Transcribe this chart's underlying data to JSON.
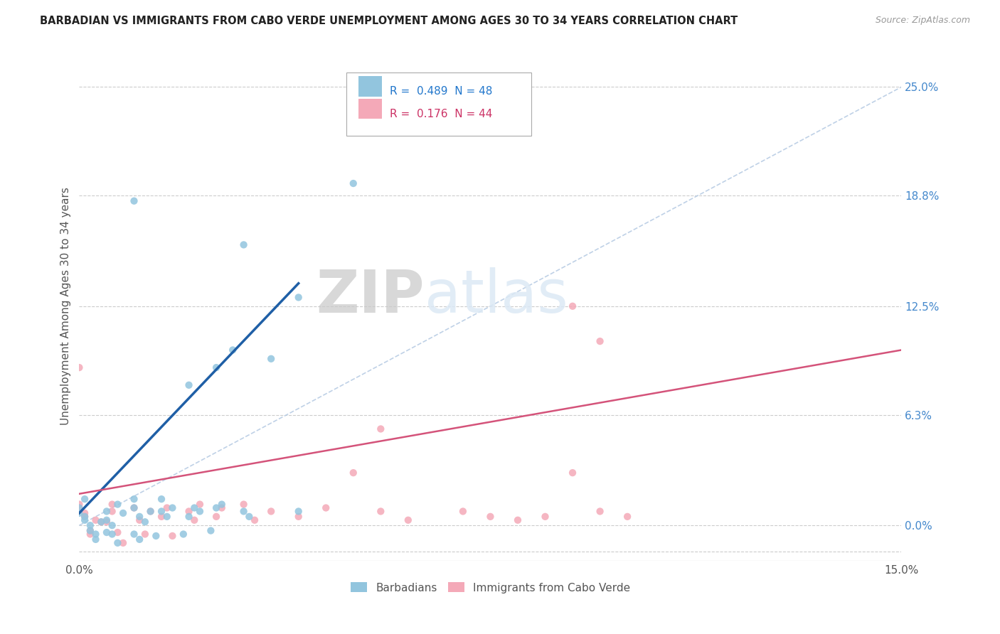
{
  "title": "BARBADIAN VS IMMIGRANTS FROM CABO VERDE UNEMPLOYMENT AMONG AGES 30 TO 34 YEARS CORRELATION CHART",
  "source": "Source: ZipAtlas.com",
  "ylabel": "Unemployment Among Ages 30 to 34 years",
  "xlim": [
    0,
    0.15
  ],
  "ylim": [
    -0.02,
    0.27
  ],
  "ytick_labels_right": [
    "25.0%",
    "18.8%",
    "12.5%",
    "6.3%",
    "0.0%"
  ],
  "yticks_right": [
    0.25,
    0.188,
    0.125,
    0.063,
    0.0
  ],
  "legend_r1_text": "R =  0.489  N = 48",
  "legend_r2_text": "R =  0.176  N = 44",
  "barbadian_color": "#92c5de",
  "cabo_verde_color": "#f4a9b8",
  "blue_line_color": "#1f5fa6",
  "pink_line_color": "#d4537a",
  "ref_line_color": "#b8cce4",
  "background_color": "#ffffff",
  "grid_color": "#cccccc",
  "watermark_color": "#dce9f5",
  "barbadian_x": [
    0.001,
    0.002,
    0.0,
    0.003,
    0.001,
    0.0,
    0.002,
    0.004,
    0.001,
    0.003,
    0.005,
    0.006,
    0.005,
    0.007,
    0.006,
    0.005,
    0.008,
    0.007,
    0.01,
    0.011,
    0.01,
    0.012,
    0.013,
    0.011,
    0.01,
    0.015,
    0.016,
    0.014,
    0.017,
    0.015,
    0.02,
    0.021,
    0.019,
    0.022,
    0.025,
    0.026,
    0.024,
    0.03,
    0.031,
    0.04,
    0.03,
    0.035,
    0.04,
    0.02,
    0.025,
    0.028,
    0.05,
    0.01
  ],
  "barbadian_y": [
    0.005,
    0.0,
    0.01,
    -0.005,
    0.003,
    0.007,
    -0.003,
    0.002,
    0.015,
    -0.008,
    0.008,
    -0.005,
    0.003,
    0.012,
    0.0,
    -0.004,
    0.007,
    -0.01,
    0.01,
    0.005,
    -0.005,
    0.002,
    0.008,
    -0.008,
    0.015,
    0.008,
    0.005,
    -0.006,
    0.01,
    0.015,
    0.005,
    0.01,
    -0.005,
    0.008,
    0.01,
    0.012,
    -0.003,
    0.008,
    0.005,
    0.008,
    0.16,
    0.095,
    0.13,
    0.08,
    0.09,
    0.1,
    0.195,
    0.185
  ],
  "cabo_verde_x": [
    0.001,
    0.0,
    0.002,
    0.003,
    0.001,
    0.0,
    0.002,
    0.004,
    0.006,
    0.005,
    0.007,
    0.006,
    0.008,
    0.01,
    0.011,
    0.012,
    0.013,
    0.015,
    0.016,
    0.017,
    0.02,
    0.021,
    0.022,
    0.025,
    0.026,
    0.03,
    0.032,
    0.035,
    0.04,
    0.045,
    0.05,
    0.055,
    0.06,
    0.07,
    0.075,
    0.08,
    0.085,
    0.09,
    0.095,
    0.1,
    0.055,
    0.09,
    0.095,
    0.0
  ],
  "cabo_verde_y": [
    0.005,
    0.01,
    -0.005,
    0.003,
    0.007,
    0.012,
    -0.003,
    0.002,
    0.008,
    0.002,
    -0.004,
    0.012,
    -0.01,
    0.01,
    0.003,
    -0.005,
    0.008,
    0.005,
    0.01,
    -0.006,
    0.008,
    0.003,
    0.012,
    0.005,
    0.01,
    0.012,
    0.003,
    0.008,
    0.005,
    0.01,
    0.03,
    0.008,
    0.003,
    0.008,
    0.005,
    0.003,
    0.005,
    0.03,
    0.008,
    0.005,
    0.055,
    0.125,
    0.105,
    0.09
  ],
  "blue_line_x": [
    0.0,
    0.04
  ],
  "blue_line_y": [
    0.007,
    0.138
  ],
  "pink_line_x": [
    0.0,
    0.15
  ],
  "pink_line_y": [
    0.018,
    0.1
  ]
}
